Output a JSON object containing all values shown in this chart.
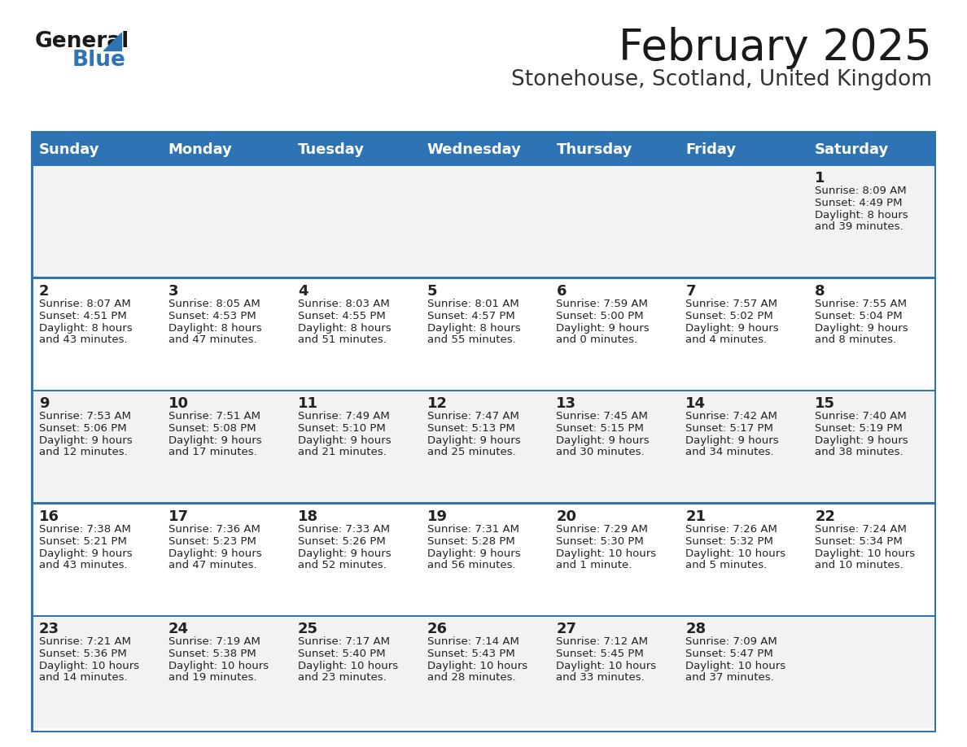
{
  "title": "February 2025",
  "subtitle": "Stonehouse, Scotland, United Kingdom",
  "header_bg": "#2E74B5",
  "header_fg": "#FFFFFF",
  "cell_bg_even": "#F2F2F2",
  "cell_bg_odd": "#FFFFFF",
  "divider_color": "#2E74B5",
  "text_color": "#222222",
  "day_names": [
    "Sunday",
    "Monday",
    "Tuesday",
    "Wednesday",
    "Thursday",
    "Friday",
    "Saturday"
  ],
  "weeks": [
    [
      {
        "day": null,
        "sunrise": null,
        "sunset": null,
        "daylight1": null,
        "daylight2": null
      },
      {
        "day": null,
        "sunrise": null,
        "sunset": null,
        "daylight1": null,
        "daylight2": null
      },
      {
        "day": null,
        "sunrise": null,
        "sunset": null,
        "daylight1": null,
        "daylight2": null
      },
      {
        "day": null,
        "sunrise": null,
        "sunset": null,
        "daylight1": null,
        "daylight2": null
      },
      {
        "day": null,
        "sunrise": null,
        "sunset": null,
        "daylight1": null,
        "daylight2": null
      },
      {
        "day": null,
        "sunrise": null,
        "sunset": null,
        "daylight1": null,
        "daylight2": null
      },
      {
        "day": 1,
        "sunrise": "8:09 AM",
        "sunset": "4:49 PM",
        "daylight1": "8 hours",
        "daylight2": "and 39 minutes."
      }
    ],
    [
      {
        "day": 2,
        "sunrise": "8:07 AM",
        "sunset": "4:51 PM",
        "daylight1": "8 hours",
        "daylight2": "and 43 minutes."
      },
      {
        "day": 3,
        "sunrise": "8:05 AM",
        "sunset": "4:53 PM",
        "daylight1": "8 hours",
        "daylight2": "and 47 minutes."
      },
      {
        "day": 4,
        "sunrise": "8:03 AM",
        "sunset": "4:55 PM",
        "daylight1": "8 hours",
        "daylight2": "and 51 minutes."
      },
      {
        "day": 5,
        "sunrise": "8:01 AM",
        "sunset": "4:57 PM",
        "daylight1": "8 hours",
        "daylight2": "and 55 minutes."
      },
      {
        "day": 6,
        "sunrise": "7:59 AM",
        "sunset": "5:00 PM",
        "daylight1": "9 hours",
        "daylight2": "and 0 minutes."
      },
      {
        "day": 7,
        "sunrise": "7:57 AM",
        "sunset": "5:02 PM",
        "daylight1": "9 hours",
        "daylight2": "and 4 minutes."
      },
      {
        "day": 8,
        "sunrise": "7:55 AM",
        "sunset": "5:04 PM",
        "daylight1": "9 hours",
        "daylight2": "and 8 minutes."
      }
    ],
    [
      {
        "day": 9,
        "sunrise": "7:53 AM",
        "sunset": "5:06 PM",
        "daylight1": "9 hours",
        "daylight2": "and 12 minutes."
      },
      {
        "day": 10,
        "sunrise": "7:51 AM",
        "sunset": "5:08 PM",
        "daylight1": "9 hours",
        "daylight2": "and 17 minutes."
      },
      {
        "day": 11,
        "sunrise": "7:49 AM",
        "sunset": "5:10 PM",
        "daylight1": "9 hours",
        "daylight2": "and 21 minutes."
      },
      {
        "day": 12,
        "sunrise": "7:47 AM",
        "sunset": "5:13 PM",
        "daylight1": "9 hours",
        "daylight2": "and 25 minutes."
      },
      {
        "day": 13,
        "sunrise": "7:45 AM",
        "sunset": "5:15 PM",
        "daylight1": "9 hours",
        "daylight2": "and 30 minutes."
      },
      {
        "day": 14,
        "sunrise": "7:42 AM",
        "sunset": "5:17 PM",
        "daylight1": "9 hours",
        "daylight2": "and 34 minutes."
      },
      {
        "day": 15,
        "sunrise": "7:40 AM",
        "sunset": "5:19 PM",
        "daylight1": "9 hours",
        "daylight2": "and 38 minutes."
      }
    ],
    [
      {
        "day": 16,
        "sunrise": "7:38 AM",
        "sunset": "5:21 PM",
        "daylight1": "9 hours",
        "daylight2": "and 43 minutes."
      },
      {
        "day": 17,
        "sunrise": "7:36 AM",
        "sunset": "5:23 PM",
        "daylight1": "9 hours",
        "daylight2": "and 47 minutes."
      },
      {
        "day": 18,
        "sunrise": "7:33 AM",
        "sunset": "5:26 PM",
        "daylight1": "9 hours",
        "daylight2": "and 52 minutes."
      },
      {
        "day": 19,
        "sunrise": "7:31 AM",
        "sunset": "5:28 PM",
        "daylight1": "9 hours",
        "daylight2": "and 56 minutes."
      },
      {
        "day": 20,
        "sunrise": "7:29 AM",
        "sunset": "5:30 PM",
        "daylight1": "10 hours",
        "daylight2": "and 1 minute."
      },
      {
        "day": 21,
        "sunrise": "7:26 AM",
        "sunset": "5:32 PM",
        "daylight1": "10 hours",
        "daylight2": "and 5 minutes."
      },
      {
        "day": 22,
        "sunrise": "7:24 AM",
        "sunset": "5:34 PM",
        "daylight1": "10 hours",
        "daylight2": "and 10 minutes."
      }
    ],
    [
      {
        "day": 23,
        "sunrise": "7:21 AM",
        "sunset": "5:36 PM",
        "daylight1": "10 hours",
        "daylight2": "and 14 minutes."
      },
      {
        "day": 24,
        "sunrise": "7:19 AM",
        "sunset": "5:38 PM",
        "daylight1": "10 hours",
        "daylight2": "and 19 minutes."
      },
      {
        "day": 25,
        "sunrise": "7:17 AM",
        "sunset": "5:40 PM",
        "daylight1": "10 hours",
        "daylight2": "and 23 minutes."
      },
      {
        "day": 26,
        "sunrise": "7:14 AM",
        "sunset": "5:43 PM",
        "daylight1": "10 hours",
        "daylight2": "and 28 minutes."
      },
      {
        "day": 27,
        "sunrise": "7:12 AM",
        "sunset": "5:45 PM",
        "daylight1": "10 hours",
        "daylight2": "and 33 minutes."
      },
      {
        "day": 28,
        "sunrise": "7:09 AM",
        "sunset": "5:47 PM",
        "daylight1": "10 hours",
        "daylight2": "and 37 minutes."
      },
      {
        "day": null,
        "sunrise": null,
        "sunset": null,
        "daylight1": null,
        "daylight2": null
      }
    ]
  ]
}
